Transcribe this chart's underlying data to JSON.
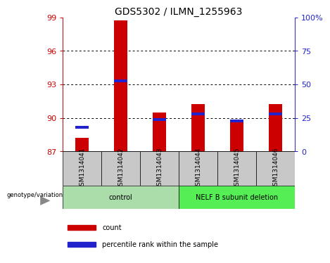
{
  "title": "GDS5302 / ILMN_1255963",
  "samples": [
    "GSM1314041",
    "GSM1314042",
    "GSM1314043",
    "GSM1314044",
    "GSM1314045",
    "GSM1314046"
  ],
  "count_values": [
    88.2,
    98.7,
    90.5,
    91.2,
    89.8,
    91.2
  ],
  "percentile_values": [
    89.0,
    93.2,
    89.7,
    90.2,
    89.6,
    90.2
  ],
  "ylim_left": [
    87,
    99
  ],
  "ylim_right": [
    0,
    100
  ],
  "yticks_left": [
    87,
    90,
    93,
    96,
    99
  ],
  "yticks_right": [
    0,
    25,
    50,
    75,
    100
  ],
  "ytick_labels_right": [
    "0",
    "25",
    "50",
    "75",
    "100%"
  ],
  "hlines": [
    90,
    93,
    96
  ],
  "bar_bottom": 87,
  "count_color": "#cc0000",
  "percentile_color": "#2222cc",
  "cell_bg_color": "#c8c8c8",
  "control_color": "#aaddaa",
  "deletion_color": "#55ee55",
  "bar_width": 0.35,
  "genotype_label": "genotype/variation",
  "legend_items": [
    {
      "color": "#cc0000",
      "label": "count"
    },
    {
      "color": "#2222cc",
      "label": "percentile rank within the sample"
    }
  ],
  "title_fontsize": 10,
  "tick_fontsize": 8,
  "label_fontsize": 7,
  "legend_fontsize": 7
}
